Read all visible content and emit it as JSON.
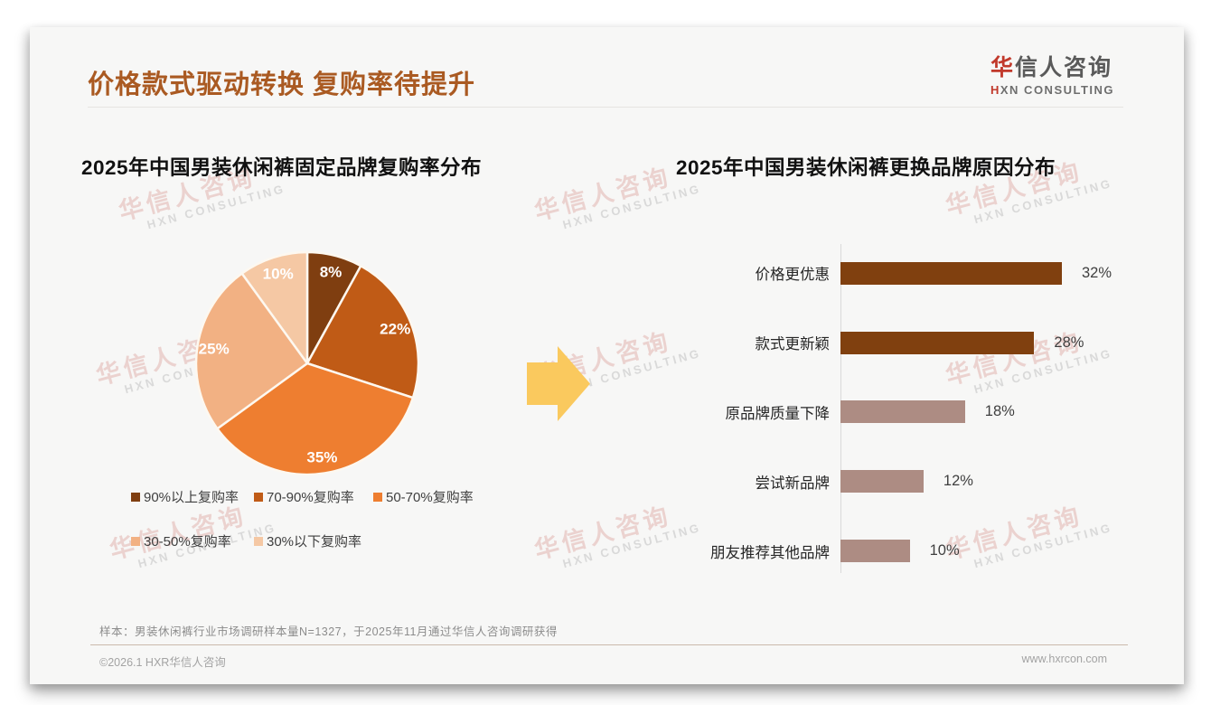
{
  "page": {
    "title": "价格款式驱动转换 复购率待提升"
  },
  "colors": {
    "title": "#AA5A22",
    "logo_red": "#C1392B",
    "logo_gray": "#5a5a5a",
    "arrow": "#FAC95E",
    "pie_border": "#fdf8f0",
    "bar_dark": "#80400F",
    "bar_light": "#AD8C83"
  },
  "logo": {
    "cn_first": "华",
    "cn_rest": "信人咨询",
    "en_first": "H",
    "en_rest": "XN CONSULTING"
  },
  "watermark": {
    "cn": "华信人咨询",
    "en": "HXN CONSULTING"
  },
  "chart_data": [
    {
      "type": "pie",
      "title": "2025年中国男装休闲裤固定品牌复购率分布",
      "labels": [
        "90%以上复购率",
        "70-90%复购率",
        "50-70%复购率",
        "30-50%复购率",
        "30%以下复购率"
      ],
      "values": [
        8,
        22,
        35,
        25,
        10
      ],
      "data_labels": [
        "8%",
        "22%",
        "35%",
        "25%",
        "10%"
      ],
      "colors": [
        "#7F3E10",
        "#C05B16",
        "#EE7E30",
        "#F2B183",
        "#F5C8A4"
      ],
      "start_angle_deg": 0,
      "direction": "clockwise",
      "legend_position": "bottom"
    },
    {
      "type": "bar",
      "orientation": "horizontal",
      "title": "2025年中国男装休闲裤更换品牌原因分布",
      "categories": [
        "价格更优惠",
        "款式更新颖",
        "原品牌质量下降",
        "尝试新品牌",
        "朋友推荐其他品牌"
      ],
      "values": [
        32,
        28,
        18,
        12,
        10
      ],
      "value_labels": [
        "32%",
        "28%",
        "18%",
        "12%",
        "10%"
      ],
      "bar_colors": [
        "#80400F",
        "#80400F",
        "#AD8C83",
        "#AD8C83",
        "#AD8C83"
      ],
      "xlim": [
        0,
        35
      ],
      "grid": false,
      "legend_position": "none"
    }
  ],
  "footnote": "样本：男装休闲裤行业市场调研样本量N=1327，于2025年11月通过华信人咨询调研获得",
  "footer": {
    "copyright": "©2026.1 HXR华信人咨询",
    "website": "www.hxrcon.com"
  }
}
